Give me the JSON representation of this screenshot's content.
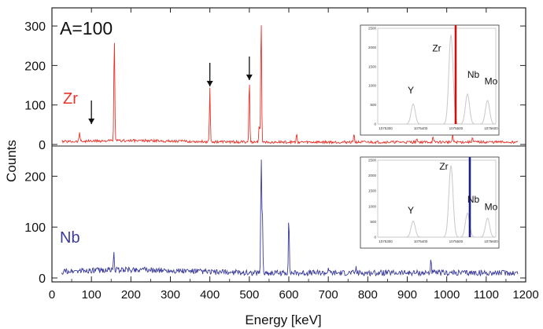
{
  "chart_data": [
    {
      "type": "line",
      "id": "zr",
      "top_label": "A=100",
      "series": [
        {
          "name": "Zr",
          "color": "#e8332a",
          "baseline": 6,
          "peaks": [
            {
              "x": 70,
              "y": 25
            },
            {
              "x": 158,
              "y": 275
            },
            {
              "x": 400,
              "y": 135
            },
            {
              "x": 500,
              "y": 160
            },
            {
              "x": 530,
              "y": 325
            },
            {
              "x": 525,
              "y": 45
            },
            {
              "x": 620,
              "y": 20
            },
            {
              "x": 765,
              "y": 22
            },
            {
              "x": 1015,
              "y": 22
            },
            {
              "x": 965,
              "y": 12
            },
            {
              "x": 925,
              "y": 10
            },
            {
              "x": 1065,
              "y": 12
            }
          ]
        }
      ],
      "arrows_x": [
        100,
        400,
        500
      ],
      "ylim": [
        0,
        330
      ],
      "yticks": [
        0,
        100,
        200,
        300
      ],
      "inset": {
        "yticks": [
          "0",
          "500",
          "1000",
          "1500",
          "2000",
          "2500"
        ],
        "xticks": [
          "1075300",
          "1075400",
          "1075500",
          "1075600"
        ],
        "peak_labels": [
          "Y",
          "Zr",
          "Nb",
          "Mo"
        ],
        "marker_color": "#cc1111"
      }
    },
    {
      "type": "line",
      "id": "nb",
      "series": [
        {
          "name": "Nb",
          "color": "#3b3b9a",
          "baseline": 10,
          "peaks": [
            {
              "x": 157,
              "y": 35
            },
            {
              "x": 530,
              "y": 230
            },
            {
              "x": 533,
              "y": 120
            },
            {
              "x": 600,
              "y": 110
            },
            {
              "x": 960,
              "y": 28
            },
            {
              "x": 700,
              "y": 12
            },
            {
              "x": 770,
              "y": 10
            },
            {
              "x": 230,
              "y": 10
            }
          ]
        }
      ],
      "ylim": [
        0,
        250
      ],
      "yticks": [
        0,
        100,
        200
      ],
      "inset": {
        "yticks": [
          "0",
          "500",
          "1000",
          "1500",
          "2000",
          "2500"
        ],
        "xticks": [
          "1075300",
          "1075400",
          "1075500",
          "1075600"
        ],
        "peak_labels": [
          "Y",
          "Zr",
          "Nb",
          "Mo"
        ],
        "marker_color": "#1c1c8c"
      }
    }
  ],
  "axes": {
    "xlabel": "Energy [keV]",
    "ylabel": "Counts",
    "xlim": [
      0,
      1200
    ],
    "xticks": [
      0,
      100,
      200,
      300,
      400,
      500,
      600,
      700,
      800,
      900,
      1000,
      1100,
      1200
    ]
  },
  "colors": {
    "axis": "#222222",
    "inset_trace": "#c8c8c8"
  }
}
